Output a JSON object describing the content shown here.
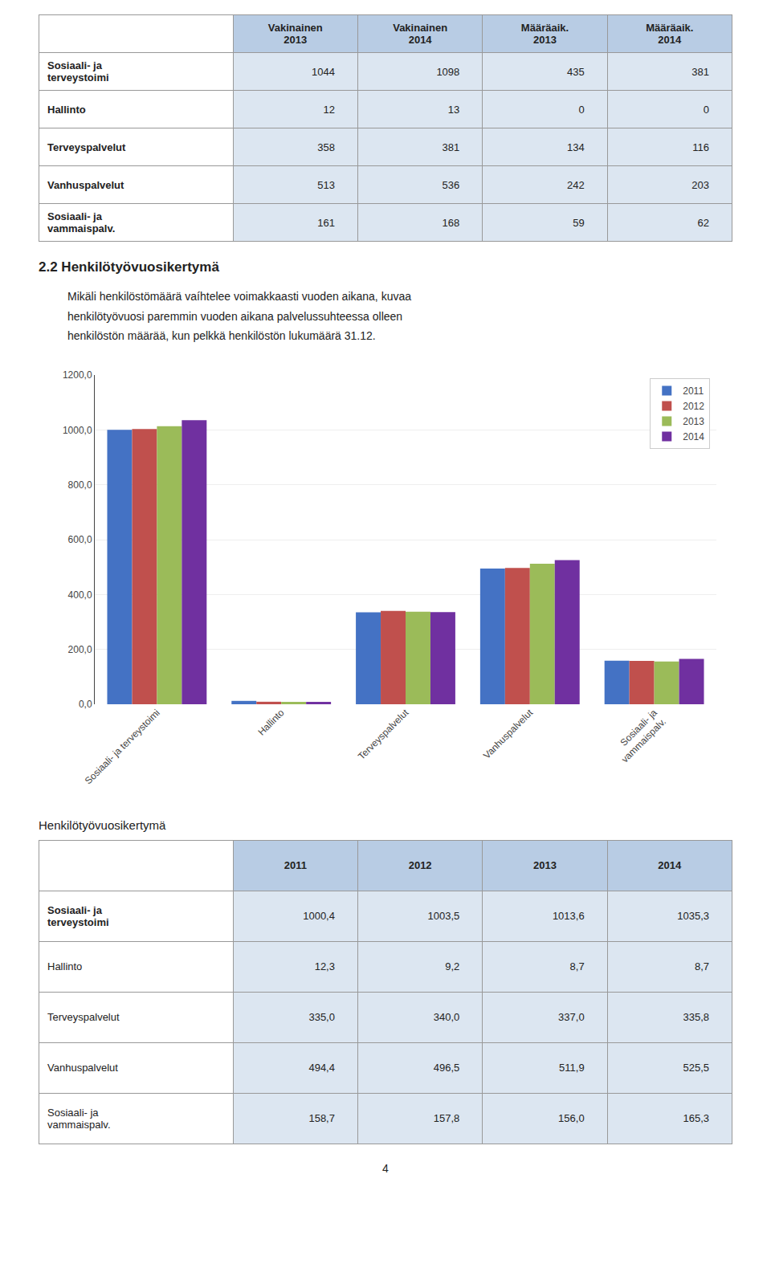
{
  "table1": {
    "col_headers": [
      "Vakinainen\n2013",
      "Vakinainen\n2014",
      "Määräaik.\n2013",
      "Määräaik.\n2014"
    ],
    "rows": [
      [
        "Sosiaali- ja\nterveystoimi",
        "1044",
        "1098",
        "435",
        "381"
      ],
      [
        "Hallinto",
        "12",
        "13",
        "0",
        "0"
      ],
      [
        "Terveyspalvelut",
        "358",
        "381",
        "134",
        "116"
      ],
      [
        "Vanhuspalvelut",
        "513",
        "536",
        "242",
        "203"
      ],
      [
        "Sosiaali- ja\nvammaispalv.",
        "161",
        "168",
        "59",
        "62"
      ]
    ]
  },
  "text": {
    "title": "2.2 Henkilötyövuosikertymä",
    "paragraph": [
      "Mikäli henkilöstömäärä vaíhtelee voimakkaasti vuoden aikana, kuvaa",
      "henkilötyövuosi paremmin vuoden aikana palvelussuhteessa olleen",
      "henkilöstön määrää, kun pelkkä henkilöstön lukumäärä 31.12."
    ]
  },
  "chart_data": {
    "type": "bar",
    "categories": [
      "Sosiaali- ja terveystoimi",
      "Hallinto",
      "Terveyspalvelut",
      "Vanhuspalvelut",
      "Sosiaali- ja\nvammaispalv."
    ],
    "series": [
      {
        "name": "2011",
        "color": "#4472c4",
        "values": [
          1000.4,
          12.3,
          335.0,
          494.4,
          158.7
        ]
      },
      {
        "name": "2012",
        "color": "#c0504d",
        "values": [
          1003.5,
          9.2,
          340.0,
          496.5,
          157.8
        ]
      },
      {
        "name": "2013",
        "color": "#9bbb59",
        "values": [
          1013.6,
          8.7,
          337.0,
          511.9,
          156.0
        ]
      },
      {
        "name": "2014",
        "color": "#7030a0",
        "values": [
          1035.3,
          8.7,
          335.8,
          525.5,
          165.3
        ]
      }
    ],
    "ylim": [
      0,
      1200
    ],
    "yticks": [
      {
        "value": 0,
        "label": "0,0"
      },
      {
        "value": 200,
        "label": "200,0"
      },
      {
        "value": 400,
        "label": "400,0"
      },
      {
        "value": 600,
        "label": "600,0"
      },
      {
        "value": 800,
        "label": "800,0"
      },
      {
        "value": 1000,
        "label": "1000,0"
      },
      {
        "value": 1200,
        "label": "1200,0"
      }
    ],
    "grid": true,
    "legend": "upper right"
  },
  "table2": {
    "title": "Henkilötyövuosikertymä",
    "col_headers": [
      "2011",
      "2012",
      "2013",
      "2014"
    ],
    "rows": [
      [
        "Sosiaali- ja\nterveystoimi",
        "1000,4",
        "1003,5",
        "1013,6",
        "1035,3"
      ],
      [
        "Hallinto",
        "12,3",
        "9,2",
        "8,7",
        "8,7"
      ],
      [
        "Terveyspalvelut",
        "335,0",
        "340,0",
        "337,0",
        "335,8"
      ],
      [
        "Vanhuspalvelut",
        "494,4",
        "496,5",
        "511,9",
        "525,5"
      ],
      [
        "Sosiaali- ja\nvammaispalv.",
        "158,7",
        "157,8",
        "156,0",
        "165,3"
      ]
    ]
  },
  "page_number": "4"
}
